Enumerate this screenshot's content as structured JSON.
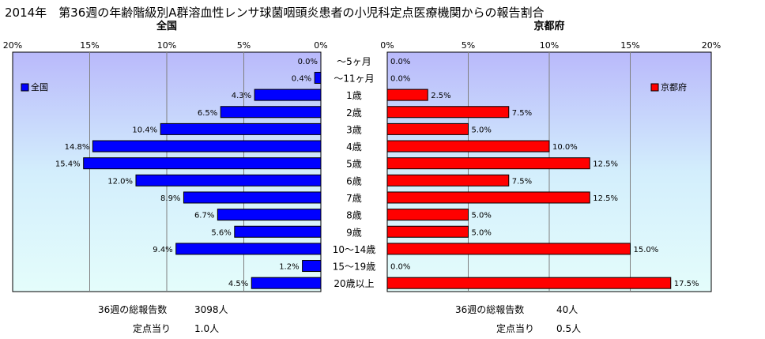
{
  "title": "2014年　第36週の年齢階級別A群溶血性レンサ球菌咽頭炎患者の小児科定点医療機関からの報告割合",
  "chart_data": [
    {
      "type": "bar",
      "orientation": "horizontal",
      "title": "全国",
      "legend": "全国",
      "legend_position": "top-left",
      "direction": "right-to-left",
      "color": "#0000ff",
      "categories": [
        "〜5ヶ月",
        "〜11ヶ月",
        "1歳",
        "2歳",
        "3歳",
        "4歳",
        "5歳",
        "6歳",
        "7歳",
        "8歳",
        "9歳",
        "10〜14歳",
        "15〜19歳",
        "20歳以上"
      ],
      "values": [
        0.0,
        0.4,
        4.3,
        6.5,
        10.4,
        14.8,
        15.4,
        12.0,
        8.9,
        6.7,
        5.6,
        9.4,
        1.2,
        4.5
      ],
      "value_labels": [
        "0.0%",
        "0.4%",
        "4.3%",
        "6.5%",
        "10.4%",
        "14.8%",
        "15.4%",
        "12.0%",
        "8.9%",
        "6.7%",
        "5.6%",
        "9.4%",
        "1.2%",
        "4.5%"
      ],
      "xlim": [
        0,
        20
      ],
      "ticks": [
        "0%",
        "5%",
        "10%",
        "15%",
        "20%"
      ],
      "grid": true
    },
    {
      "type": "bar",
      "orientation": "horizontal",
      "title": "京都府",
      "legend": "京都府",
      "legend_position": "top-right",
      "direction": "left-to-right",
      "color": "#ff0000",
      "categories": [
        "〜5ヶ月",
        "〜11ヶ月",
        "1歳",
        "2歳",
        "3歳",
        "4歳",
        "5歳",
        "6歳",
        "7歳",
        "8歳",
        "9歳",
        "10〜14歳",
        "15〜19歳",
        "20歳以上"
      ],
      "values": [
        0.0,
        0.0,
        2.5,
        7.5,
        5.0,
        10.0,
        12.5,
        7.5,
        12.5,
        5.0,
        5.0,
        15.0,
        0.0,
        17.5
      ],
      "value_labels": [
        "0.0%",
        "0.0%",
        "2.5%",
        "7.5%",
        "5.0%",
        "10.0%",
        "12.5%",
        "7.5%",
        "12.5%",
        "5.0%",
        "5.0%",
        "15.0%",
        "0.0%",
        "17.5%"
      ],
      "xlim": [
        0,
        20
      ],
      "ticks": [
        "0%",
        "5%",
        "10%",
        "15%",
        "20%"
      ],
      "grid": true
    }
  ],
  "footer": {
    "left": {
      "total_label": "36週の総報告数",
      "total_value": "3098人",
      "per_label": "定点当り",
      "per_value": "1.0人"
    },
    "right": {
      "total_label": "36週の総報告数",
      "total_value": "40人",
      "per_label": "定点当り",
      "per_value": "0.5人"
    }
  }
}
